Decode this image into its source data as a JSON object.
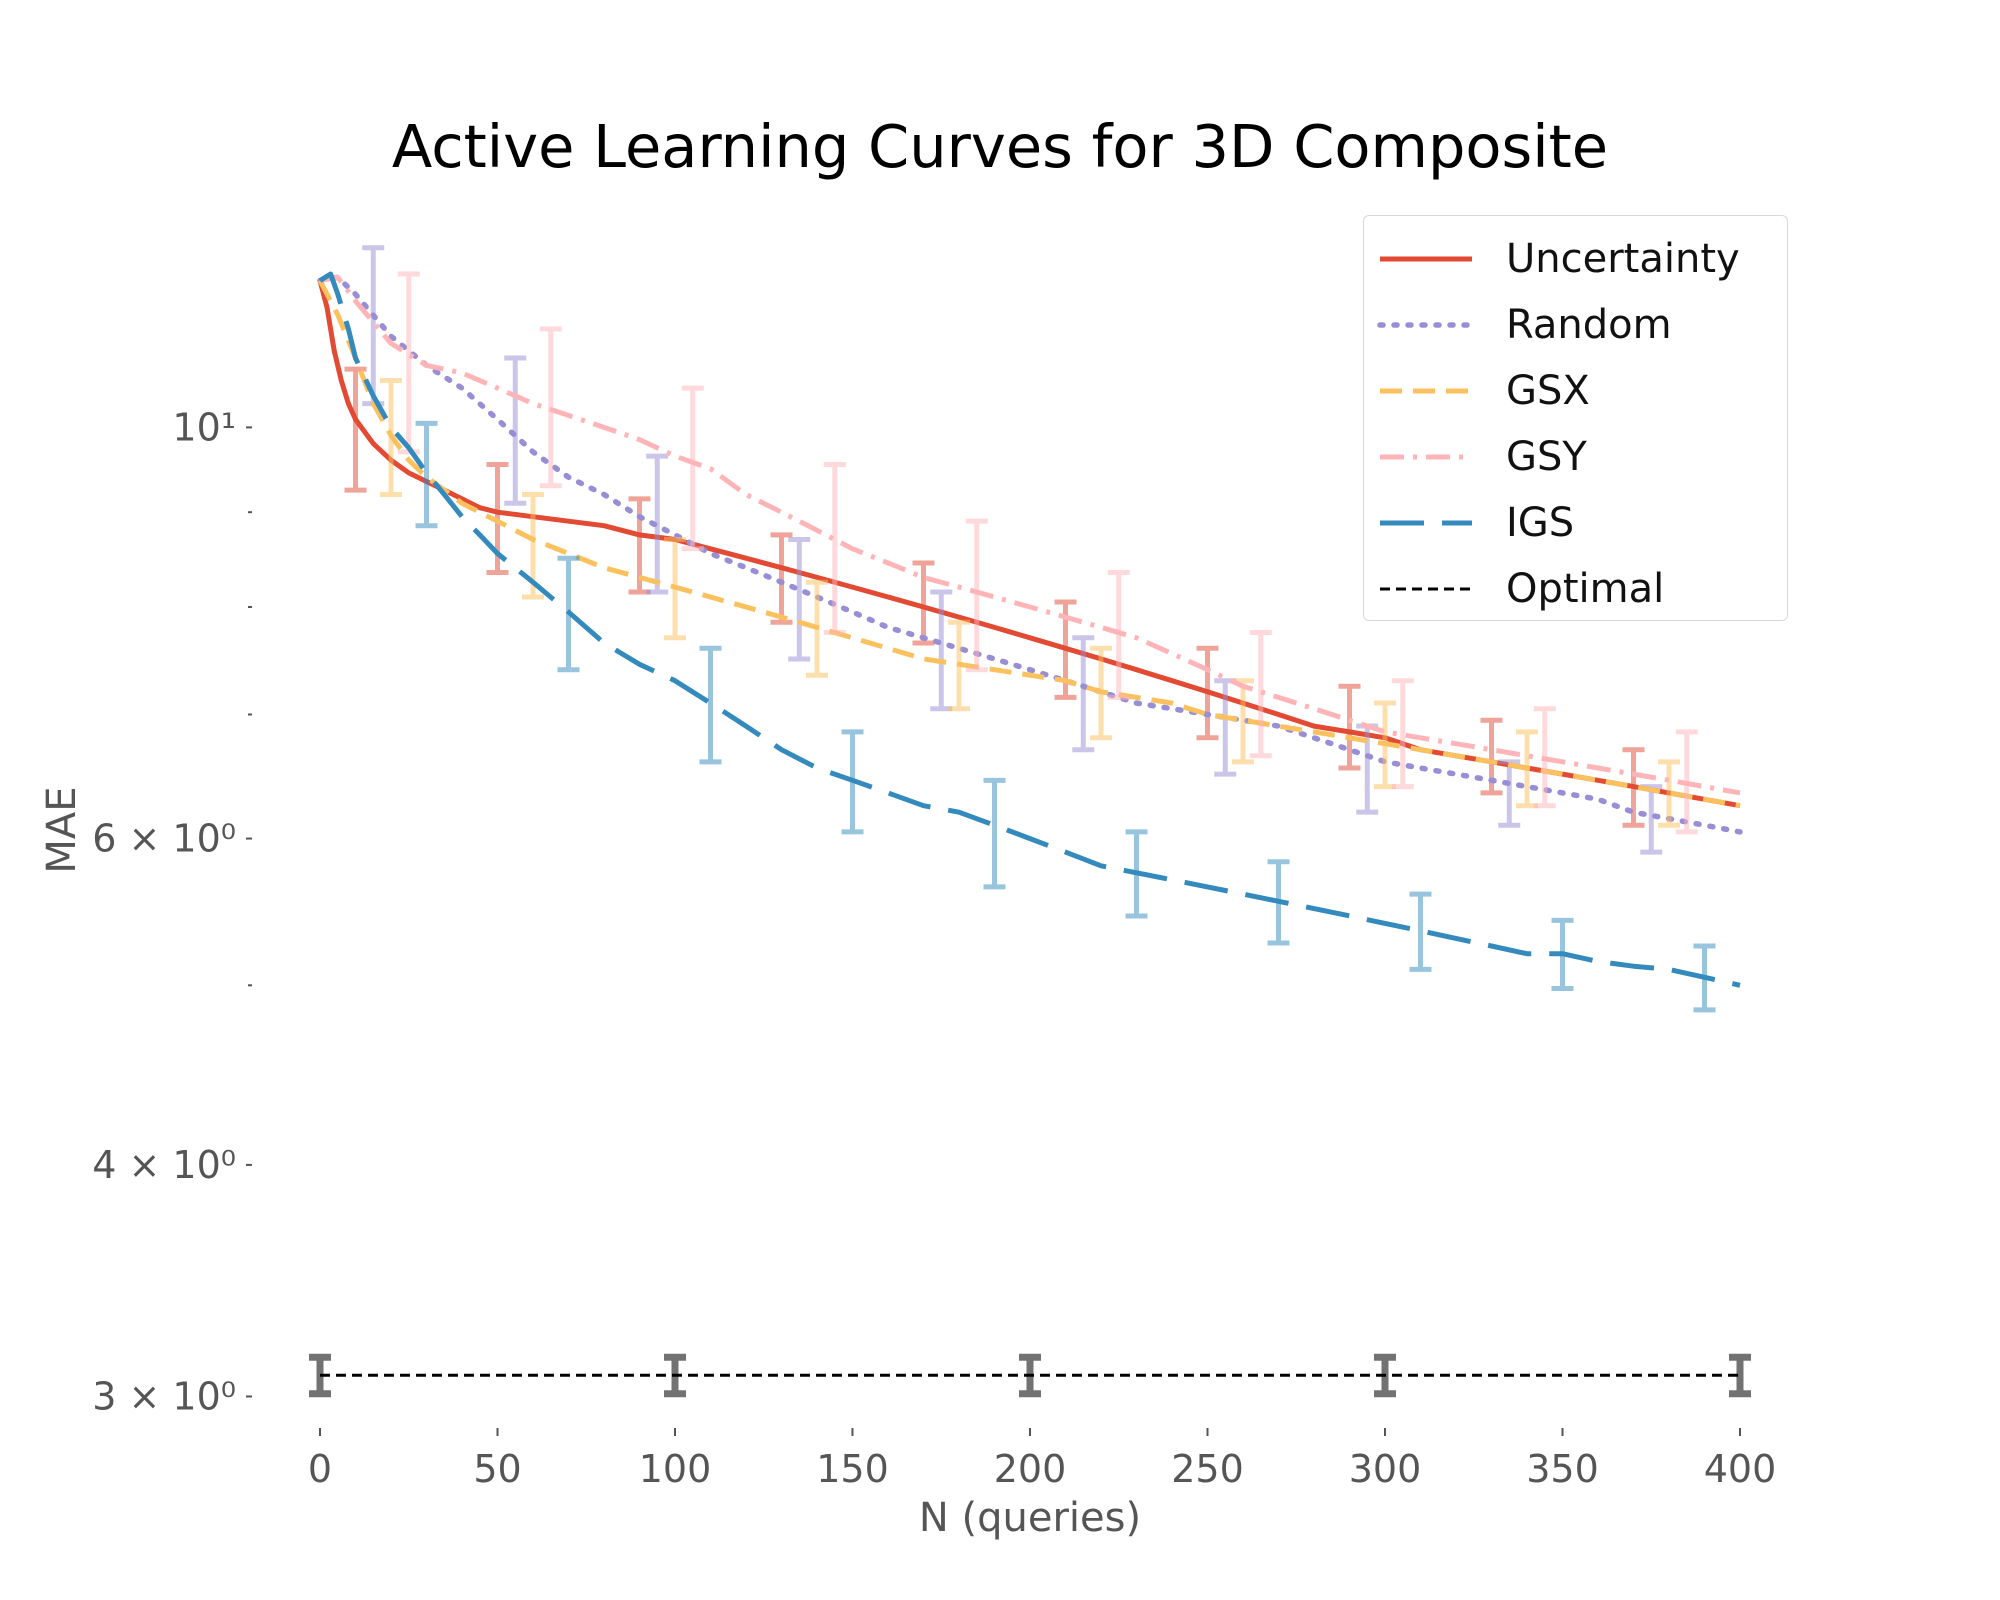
{
  "chart_data": {
    "type": "line",
    "title": "Active Learning Curves for 3D Composite",
    "xlabel": "N (queries)",
    "ylabel": "MAE",
    "yscale": "log",
    "xlim": [
      0,
      400
    ],
    "ylim": [
      2.95,
      12.7
    ],
    "xticks": [
      0,
      50,
      100,
      150,
      200,
      250,
      300,
      350,
      400
    ],
    "yticks": [
      {
        "value": 3,
        "label": "3 × 10⁰"
      },
      {
        "value": 4,
        "label": "4 × 10⁰"
      },
      {
        "value": 6,
        "label": "6 × 10⁰"
      },
      {
        "value": 10,
        "label": "10¹"
      }
    ],
    "minor_yticks": [
      5,
      7,
      8,
      9
    ],
    "grid": false,
    "legend_position": "top-right",
    "series": [
      {
        "name": "Uncertainty",
        "color": "#e24a33",
        "dash": "solid",
        "x": [
          0,
          2,
          4,
          6,
          8,
          10,
          15,
          20,
          25,
          30,
          35,
          40,
          45,
          50,
          60,
          70,
          80,
          90,
          100,
          110,
          120,
          130,
          140,
          150,
          160,
          170,
          180,
          190,
          200,
          210,
          220,
          230,
          240,
          250,
          260,
          270,
          280,
          290,
          300,
          310,
          320,
          330,
          340,
          350,
          360,
          370,
          380,
          390,
          400
        ],
        "y": [
          12.0,
          11.6,
          11.0,
          10.6,
          10.3,
          10.1,
          9.8,
          9.6,
          9.45,
          9.35,
          9.25,
          9.15,
          9.05,
          9.0,
          8.95,
          8.9,
          8.85,
          8.75,
          8.7,
          8.6,
          8.5,
          8.4,
          8.3,
          8.2,
          8.1,
          8.0,
          7.9,
          7.8,
          7.7,
          7.6,
          7.5,
          7.4,
          7.3,
          7.2,
          7.1,
          7.0,
          6.9,
          6.85,
          6.8,
          6.7,
          6.65,
          6.6,
          6.55,
          6.5,
          6.45,
          6.4,
          6.35,
          6.3,
          6.25
        ],
        "error_bars": [
          {
            "x": 10,
            "y": 10.0,
            "err": 0.75
          },
          {
            "x": 50,
            "y": 8.95,
            "err": 0.6
          },
          {
            "x": 90,
            "y": 8.65,
            "err": 0.5
          },
          {
            "x": 130,
            "y": 8.3,
            "err": 0.45
          },
          {
            "x": 170,
            "y": 8.05,
            "err": 0.4
          },
          {
            "x": 210,
            "y": 7.6,
            "err": 0.45
          },
          {
            "x": 250,
            "y": 7.2,
            "err": 0.4
          },
          {
            "x": 290,
            "y": 6.9,
            "err": 0.35
          },
          {
            "x": 330,
            "y": 6.65,
            "err": 0.3
          },
          {
            "x": 370,
            "y": 6.4,
            "err": 0.3
          }
        ]
      },
      {
        "name": "Random",
        "color": "#988ed5",
        "dash": "dotted",
        "x": [
          0,
          5,
          10,
          20,
          30,
          40,
          50,
          60,
          70,
          80,
          90,
          100,
          110,
          120,
          130,
          140,
          150,
          160,
          170,
          180,
          190,
          200,
          210,
          220,
          230,
          240,
          250,
          260,
          270,
          280,
          290,
          300,
          310,
          320,
          330,
          340,
          350,
          360,
          370,
          380,
          390,
          400
        ],
        "y": [
          12.0,
          12.05,
          11.8,
          11.2,
          10.8,
          10.5,
          10.1,
          9.7,
          9.4,
          9.2,
          8.95,
          8.75,
          8.55,
          8.4,
          8.25,
          8.1,
          7.95,
          7.8,
          7.7,
          7.6,
          7.5,
          7.4,
          7.3,
          7.2,
          7.1,
          7.05,
          7.0,
          6.95,
          6.9,
          6.8,
          6.7,
          6.6,
          6.55,
          6.5,
          6.45,
          6.4,
          6.35,
          6.3,
          6.2,
          6.15,
          6.1,
          6.05
        ],
        "error_bars": [
          {
            "x": 15,
            "y": 11.4,
            "err": 1.1
          },
          {
            "x": 55,
            "y": 10.0,
            "err": 0.9
          },
          {
            "x": 95,
            "y": 8.9,
            "err": 0.75
          },
          {
            "x": 135,
            "y": 8.1,
            "err": 0.6
          },
          {
            "x": 175,
            "y": 7.6,
            "err": 0.55
          },
          {
            "x": 215,
            "y": 7.2,
            "err": 0.5
          },
          {
            "x": 255,
            "y": 6.9,
            "err": 0.4
          },
          {
            "x": 295,
            "y": 6.55,
            "err": 0.35
          },
          {
            "x": 335,
            "y": 6.35,
            "err": 0.25
          },
          {
            "x": 375,
            "y": 6.15,
            "err": 0.25
          }
        ]
      },
      {
        "name": "GSX",
        "color": "#fbc15e",
        "dash": "dashed",
        "x": [
          0,
          5,
          10,
          15,
          20,
          25,
          30,
          35,
          40,
          50,
          60,
          70,
          80,
          90,
          100,
          110,
          120,
          130,
          140,
          150,
          160,
          170,
          180,
          190,
          200,
          210,
          220,
          230,
          240,
          250,
          260,
          270,
          280,
          290,
          300,
          310,
          320,
          330,
          340,
          350,
          360,
          370,
          380,
          390,
          400
        ],
        "y": [
          12.0,
          11.5,
          10.9,
          10.3,
          9.9,
          9.6,
          9.4,
          9.25,
          9.1,
          8.9,
          8.7,
          8.55,
          8.4,
          8.3,
          8.2,
          8.1,
          8.0,
          7.9,
          7.8,
          7.7,
          7.6,
          7.5,
          7.45,
          7.4,
          7.35,
          7.3,
          7.2,
          7.15,
          7.1,
          7.0,
          6.95,
          6.9,
          6.85,
          6.8,
          6.75,
          6.7,
          6.65,
          6.6,
          6.55,
          6.5,
          6.45,
          6.4,
          6.35,
          6.3,
          6.25
        ],
        "error_bars": [
          {
            "x": 20,
            "y": 9.9,
            "err": 0.7
          },
          {
            "x": 60,
            "y": 8.65,
            "err": 0.55
          },
          {
            "x": 100,
            "y": 8.2,
            "err": 0.5
          },
          {
            "x": 140,
            "y": 7.8,
            "err": 0.45
          },
          {
            "x": 180,
            "y": 7.45,
            "err": 0.4
          },
          {
            "x": 220,
            "y": 7.2,
            "err": 0.4
          },
          {
            "x": 260,
            "y": 6.95,
            "err": 0.35
          },
          {
            "x": 300,
            "y": 6.75,
            "err": 0.35
          },
          {
            "x": 340,
            "y": 6.55,
            "err": 0.3
          },
          {
            "x": 380,
            "y": 6.35,
            "err": 0.25
          }
        ]
      },
      {
        "name": "GSY",
        "color": "#ffb5b8",
        "dash": "dashdot",
        "x": [
          0,
          5,
          10,
          20,
          30,
          40,
          50,
          60,
          70,
          80,
          90,
          100,
          110,
          120,
          130,
          140,
          150,
          160,
          170,
          180,
          190,
          200,
          210,
          220,
          230,
          240,
          250,
          260,
          270,
          280,
          290,
          300,
          310,
          320,
          330,
          340,
          350,
          360,
          370,
          380,
          390,
          400
        ],
        "y": [
          12.0,
          12.05,
          11.7,
          11.1,
          10.8,
          10.7,
          10.5,
          10.3,
          10.15,
          10.0,
          9.85,
          9.65,
          9.5,
          9.2,
          9.0,
          8.8,
          8.6,
          8.45,
          8.3,
          8.2,
          8.1,
          8.0,
          7.9,
          7.8,
          7.7,
          7.55,
          7.4,
          7.25,
          7.15,
          7.05,
          6.95,
          6.85,
          6.8,
          6.75,
          6.7,
          6.65,
          6.6,
          6.55,
          6.5,
          6.45,
          6.4,
          6.35
        ],
        "error_bars": [
          {
            "x": 25,
            "y": 10.9,
            "err": 1.2
          },
          {
            "x": 65,
            "y": 10.3,
            "err": 1.0
          },
          {
            "x": 105,
            "y": 9.55,
            "err": 0.95
          },
          {
            "x": 145,
            "y": 8.65,
            "err": 0.9
          },
          {
            "x": 185,
            "y": 8.15,
            "err": 0.75
          },
          {
            "x": 225,
            "y": 7.75,
            "err": 0.6
          },
          {
            "x": 265,
            "y": 7.2,
            "err": 0.55
          },
          {
            "x": 305,
            "y": 6.85,
            "err": 0.45
          },
          {
            "x": 345,
            "y": 6.65,
            "err": 0.4
          },
          {
            "x": 385,
            "y": 6.45,
            "err": 0.4
          }
        ]
      },
      {
        "name": "IGS",
        "color": "#348abd",
        "dash": "longdash",
        "x": [
          0,
          3,
          5,
          8,
          10,
          15,
          20,
          25,
          30,
          35,
          40,
          45,
          50,
          60,
          70,
          80,
          90,
          100,
          110,
          120,
          130,
          140,
          150,
          160,
          170,
          180,
          190,
          200,
          210,
          220,
          230,
          240,
          250,
          260,
          270,
          280,
          290,
          300,
          310,
          320,
          330,
          340,
          350,
          360,
          370,
          380,
          390,
          400
        ],
        "y": [
          12.0,
          12.1,
          11.8,
          11.3,
          10.9,
          10.4,
          10.0,
          9.75,
          9.45,
          9.2,
          8.95,
          8.75,
          8.55,
          8.25,
          7.95,
          7.65,
          7.45,
          7.3,
          7.1,
          6.9,
          6.7,
          6.55,
          6.45,
          6.35,
          6.25,
          6.2,
          6.1,
          6.0,
          5.9,
          5.8,
          5.75,
          5.7,
          5.65,
          5.6,
          5.55,
          5.5,
          5.45,
          5.4,
          5.35,
          5.3,
          5.25,
          5.2,
          5.2,
          5.15,
          5.12,
          5.1,
          5.05,
          5.0
        ],
        "error_bars": [
          {
            "x": 30,
            "y": 9.45,
            "err": 0.6
          },
          {
            "x": 70,
            "y": 7.95,
            "err": 0.55
          },
          {
            "x": 110,
            "y": 7.1,
            "err": 0.5
          },
          {
            "x": 150,
            "y": 6.45,
            "err": 0.4
          },
          {
            "x": 190,
            "y": 6.05,
            "err": 0.4
          },
          {
            "x": 230,
            "y": 5.75,
            "err": 0.3
          },
          {
            "x": 270,
            "y": 5.55,
            "err": 0.28
          },
          {
            "x": 310,
            "y": 5.35,
            "err": 0.25
          },
          {
            "x": 350,
            "y": 5.2,
            "err": 0.22
          },
          {
            "x": 390,
            "y": 5.05,
            "err": 0.2
          }
        ]
      },
      {
        "name": "Optimal",
        "color": "#000000",
        "dash": "shortdash",
        "x": [
          0,
          400
        ],
        "y": [
          3.08,
          3.08
        ],
        "error_bars": [
          {
            "x": 0,
            "y": 3.08,
            "err": 0.07
          },
          {
            "x": 100,
            "y": 3.08,
            "err": 0.07
          },
          {
            "x": 200,
            "y": 3.08,
            "err": 0.07
          },
          {
            "x": 300,
            "y": 3.08,
            "err": 0.07
          },
          {
            "x": 400,
            "y": 3.08,
            "err": 0.07
          }
        ]
      }
    ]
  }
}
